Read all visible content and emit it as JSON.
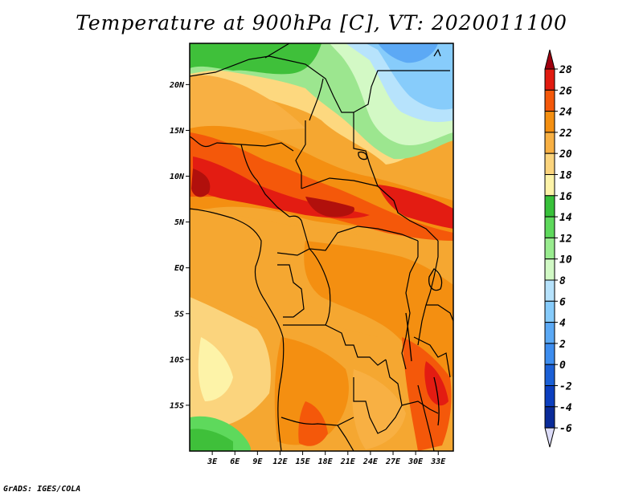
{
  "title": "Temperature at 900hPa [C], VT: 2020011100",
  "credit": "GrADS: IGES/COLA",
  "map": {
    "lat_range": [
      -20,
      24.5
    ],
    "lon_range": [
      0,
      35
    ],
    "lat_labels": [
      {
        "lat": 20,
        "text": "20N"
      },
      {
        "lat": 15,
        "text": "15N"
      },
      {
        "lat": 10,
        "text": "10N"
      },
      {
        "lat": 5,
        "text": "5N"
      },
      {
        "lat": 0,
        "text": "EQ"
      },
      {
        "lat": -5,
        "text": "5S"
      },
      {
        "lat": -10,
        "text": "10S"
      },
      {
        "lat": -15,
        "text": "15S"
      }
    ],
    "lon_labels": [
      {
        "lon": 3,
        "text": "3E"
      },
      {
        "lon": 6,
        "text": "6E"
      },
      {
        "lon": 9,
        "text": "9E"
      },
      {
        "lon": 12,
        "text": "12E"
      },
      {
        "lon": 15,
        "text": "15E"
      },
      {
        "lon": 18,
        "text": "18E"
      },
      {
        "lon": 21,
        "text": "21E"
      },
      {
        "lon": 24,
        "text": "24E"
      },
      {
        "lon": 27,
        "text": "27E"
      },
      {
        "lon": 30,
        "text": "30E"
      },
      {
        "lon": 33,
        "text": "33E"
      }
    ]
  },
  "colorbar": {
    "levels": [
      "28",
      "26",
      "24",
      "22",
      "20",
      "18",
      "16",
      "14",
      "12",
      "10",
      "8",
      "6",
      "4",
      "2",
      "0",
      "-2",
      "-4",
      "-6"
    ],
    "colors": [
      "#a0000f",
      "#e11b10",
      "#f4580a",
      "#f48f11",
      "#f8b043",
      "#fbd47d",
      "#fdf3a8",
      "#38c13a",
      "#5ed95c",
      "#99ec8f",
      "#d1f9c5",
      "#b6e2fc",
      "#86cbfb",
      "#5ba9f5",
      "#3d8def",
      "#1b60d6",
      "#0c3fbf",
      "#0a2b99",
      "#0a0f6e"
    ],
    "top_color": "#a0000f",
    "bottom_color": "#dcdcf8"
  }
}
